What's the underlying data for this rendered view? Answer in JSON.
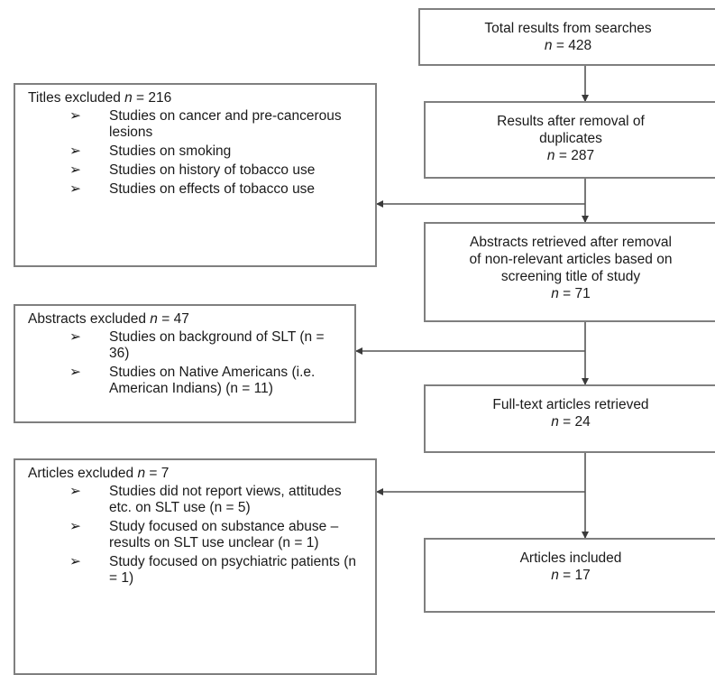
{
  "flow": {
    "total": {
      "label": "Total results from searches",
      "n": "428"
    },
    "dedup": {
      "label_lines": [
        "Results after removal of",
        "duplicates"
      ],
      "n": "287"
    },
    "abstracts": {
      "label_lines": [
        "Abstracts retrieved after removal",
        "of non-relevant articles based on",
        "screening title of study"
      ],
      "n": "71"
    },
    "fulltext": {
      "label": "Full-text articles retrieved",
      "n": "24"
    },
    "included": {
      "label": "Articles included",
      "n": "17"
    }
  },
  "exclusions": {
    "titles": {
      "title_prefix": "Titles excluded",
      "n": "216",
      "items": [
        "Studies on cancer and pre-cancerous lesions",
        "Studies on smoking",
        "Studies on history of tobacco use",
        "Studies on effects of tobacco use"
      ]
    },
    "abstracts": {
      "title_prefix": "Abstracts excluded",
      "n": "47",
      "items": [
        "Studies on background of SLT (n = 36)",
        "Studies on Native Americans (i.e. American Indians) (n = 11)"
      ]
    },
    "articles": {
      "title_prefix": "Articles excluded",
      "n": "7",
      "items": [
        "Studies did not report views, attitudes etc. on SLT use (n = 5)",
        "Study focused on substance abuse – results on SLT use unclear (n = 1)",
        "Study focused on psychiatric patients (n = 1)"
      ]
    }
  },
  "labels": {
    "n_symbol": "n",
    "equals": " = ",
    "bullet": "➢"
  }
}
